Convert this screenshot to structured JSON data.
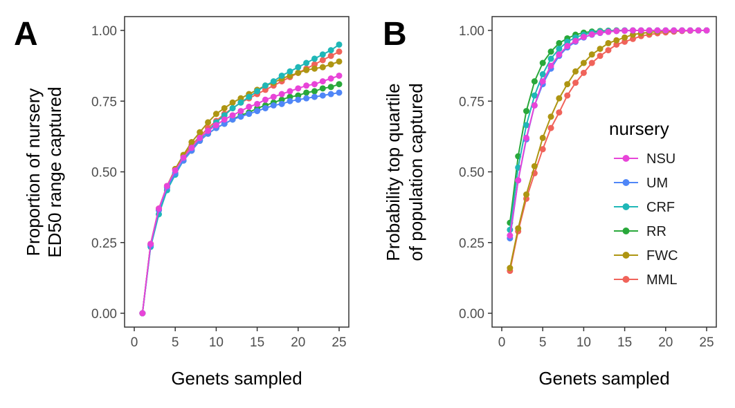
{
  "panels": [
    {
      "letter": "A",
      "xlabel": "Genets sampled",
      "ylabel_lines": [
        "Proportion of nursery",
        "ED50 range captured"
      ]
    },
    {
      "letter": "B",
      "xlabel": "Genets sampled",
      "ylabel_lines": [
        "Probability top quartile",
        "of population captured"
      ]
    }
  ],
  "legend": {
    "title": "nursery",
    "entries": [
      {
        "name": "NSU",
        "color": "#E844D8"
      },
      {
        "name": "UM",
        "color": "#4F86F7"
      },
      {
        "name": "CRF",
        "color": "#1FB7B7"
      },
      {
        "name": "RR",
        "color": "#28A83A"
      },
      {
        "name": "FWC",
        "color": "#AE9512"
      },
      {
        "name": "MML",
        "color": "#F0635A"
      }
    ]
  },
  "chart_data": [
    {
      "type": "line",
      "panel": "A",
      "xlabel": "Genets sampled",
      "ylabel": "Proportion of nursery ED50 range captured",
      "xlim": [
        0,
        25
      ],
      "ylim": [
        0,
        1
      ],
      "xticks": [
        0,
        5,
        10,
        15,
        20,
        25
      ],
      "xtick_labels": [
        "0",
        "5",
        "10",
        "15",
        "20",
        "25"
      ],
      "yticks": [
        0,
        0.25,
        0.5,
        0.75,
        1.0
      ],
      "ytick_labels": [
        "0.00",
        "0.25",
        "0.50",
        "0.75",
        "1.00"
      ],
      "grid": false,
      "x": [
        1,
        2,
        3,
        4,
        5,
        6,
        7,
        8,
        9,
        10,
        11,
        12,
        13,
        14,
        15,
        16,
        17,
        18,
        19,
        20,
        21,
        22,
        23,
        24,
        25
      ],
      "series": [
        {
          "name": "MML",
          "color": "#F0635A",
          "values": [
            0,
            0.245,
            0.37,
            0.45,
            0.51,
            0.555,
            0.595,
            0.625,
            0.655,
            0.68,
            0.705,
            0.725,
            0.745,
            0.76,
            0.775,
            0.79,
            0.805,
            0.82,
            0.835,
            0.85,
            0.865,
            0.88,
            0.895,
            0.91,
            0.925
          ]
        },
        {
          "name": "FWC",
          "color": "#AE9512",
          "values": [
            0,
            0.245,
            0.37,
            0.45,
            0.51,
            0.56,
            0.605,
            0.64,
            0.675,
            0.705,
            0.725,
            0.745,
            0.76,
            0.775,
            0.79,
            0.805,
            0.815,
            0.83,
            0.84,
            0.85,
            0.86,
            0.865,
            0.87,
            0.88,
            0.89
          ]
        },
        {
          "name": "RR",
          "color": "#28A83A",
          "values": [
            0,
            0.24,
            0.365,
            0.445,
            0.495,
            0.54,
            0.575,
            0.61,
            0.635,
            0.655,
            0.67,
            0.685,
            0.7,
            0.71,
            0.725,
            0.735,
            0.745,
            0.755,
            0.765,
            0.77,
            0.78,
            0.785,
            0.795,
            0.8,
            0.81
          ]
        },
        {
          "name": "CRF",
          "color": "#1FB7B7",
          "values": [
            0,
            0.235,
            0.35,
            0.435,
            0.49,
            0.54,
            0.58,
            0.615,
            0.645,
            0.675,
            0.7,
            0.725,
            0.745,
            0.765,
            0.785,
            0.805,
            0.82,
            0.84,
            0.855,
            0.87,
            0.885,
            0.9,
            0.915,
            0.93,
            0.95
          ]
        },
        {
          "name": "UM",
          "color": "#4F86F7",
          "values": [
            0,
            0.24,
            0.365,
            0.445,
            0.495,
            0.54,
            0.575,
            0.61,
            0.635,
            0.655,
            0.67,
            0.685,
            0.695,
            0.705,
            0.715,
            0.725,
            0.735,
            0.74,
            0.75,
            0.755,
            0.76,
            0.765,
            0.77,
            0.775,
            0.78
          ]
        },
        {
          "name": "NSU",
          "color": "#E844D8",
          "values": [
            0,
            0.245,
            0.37,
            0.45,
            0.505,
            0.55,
            0.585,
            0.62,
            0.645,
            0.665,
            0.685,
            0.7,
            0.715,
            0.73,
            0.74,
            0.755,
            0.765,
            0.775,
            0.785,
            0.795,
            0.805,
            0.81,
            0.82,
            0.83,
            0.84
          ]
        }
      ]
    },
    {
      "type": "line",
      "panel": "B",
      "xlabel": "Genets sampled",
      "ylabel": "Probability top quartile of population captured",
      "xlim": [
        0,
        25
      ],
      "ylim": [
        0,
        1
      ],
      "xticks": [
        0,
        5,
        10,
        15,
        20,
        25
      ],
      "xtick_labels": [
        "0",
        "5",
        "10",
        "15",
        "20",
        "25"
      ],
      "yticks": [
        0,
        0.25,
        0.5,
        0.75,
        1.0
      ],
      "ytick_labels": [
        "0.00",
        "0.25",
        "0.50",
        "0.75",
        "1.00"
      ],
      "grid": false,
      "legend_position": "right-inside",
      "x": [
        1,
        2,
        3,
        4,
        5,
        6,
        7,
        8,
        9,
        10,
        11,
        12,
        13,
        14,
        15,
        16,
        17,
        18,
        19,
        20,
        21,
        22,
        23,
        24,
        25
      ],
      "series": [
        {
          "name": "MML",
          "color": "#F0635A",
          "values": [
            0.15,
            0.29,
            0.405,
            0.495,
            0.58,
            0.655,
            0.71,
            0.77,
            0.815,
            0.85,
            0.885,
            0.91,
            0.93,
            0.95,
            0.96,
            0.97,
            0.98,
            0.985,
            0.99,
            0.993,
            0.996,
            0.998,
            0.999,
            1.0,
            1.0
          ]
        },
        {
          "name": "FWC",
          "color": "#AE9512",
          "values": [
            0.16,
            0.3,
            0.42,
            0.52,
            0.62,
            0.695,
            0.76,
            0.81,
            0.855,
            0.885,
            0.915,
            0.935,
            0.955,
            0.965,
            0.975,
            0.985,
            0.99,
            0.993,
            0.996,
            0.998,
            0.999,
            1.0,
            1.0,
            1.0,
            1.0
          ]
        },
        {
          "name": "RR",
          "color": "#28A83A",
          "values": [
            0.32,
            0.555,
            0.715,
            0.82,
            0.885,
            0.925,
            0.955,
            0.972,
            0.985,
            0.992,
            0.996,
            0.998,
            0.999,
            1.0,
            1.0,
            1.0,
            1.0,
            1.0,
            1.0,
            1.0,
            1.0,
            1.0,
            1.0,
            1.0,
            1.0
          ]
        },
        {
          "name": "CRF",
          "color": "#1FB7B7",
          "values": [
            0.295,
            0.515,
            0.665,
            0.77,
            0.845,
            0.9,
            0.935,
            0.96,
            0.975,
            0.985,
            0.992,
            0.996,
            0.998,
            0.999,
            1.0,
            1.0,
            1.0,
            1.0,
            1.0,
            1.0,
            1.0,
            1.0,
            1.0,
            1.0,
            1.0
          ]
        },
        {
          "name": "UM",
          "color": "#4F86F7",
          "values": [
            0.265,
            0.47,
            0.615,
            0.735,
            0.81,
            0.865,
            0.91,
            0.94,
            0.96,
            0.975,
            0.985,
            0.991,
            0.995,
            0.998,
            0.999,
            1.0,
            1.0,
            1.0,
            1.0,
            1.0,
            1.0,
            1.0,
            1.0,
            1.0,
            1.0
          ]
        },
        {
          "name": "NSU",
          "color": "#E844D8",
          "values": [
            0.275,
            0.47,
            0.62,
            0.735,
            0.82,
            0.875,
            0.915,
            0.945,
            0.963,
            0.977,
            0.986,
            0.992,
            0.995,
            0.998,
            0.999,
            1.0,
            1.0,
            1.0,
            1.0,
            1.0,
            1.0,
            1.0,
            1.0,
            1.0,
            1.0
          ]
        }
      ]
    }
  ]
}
